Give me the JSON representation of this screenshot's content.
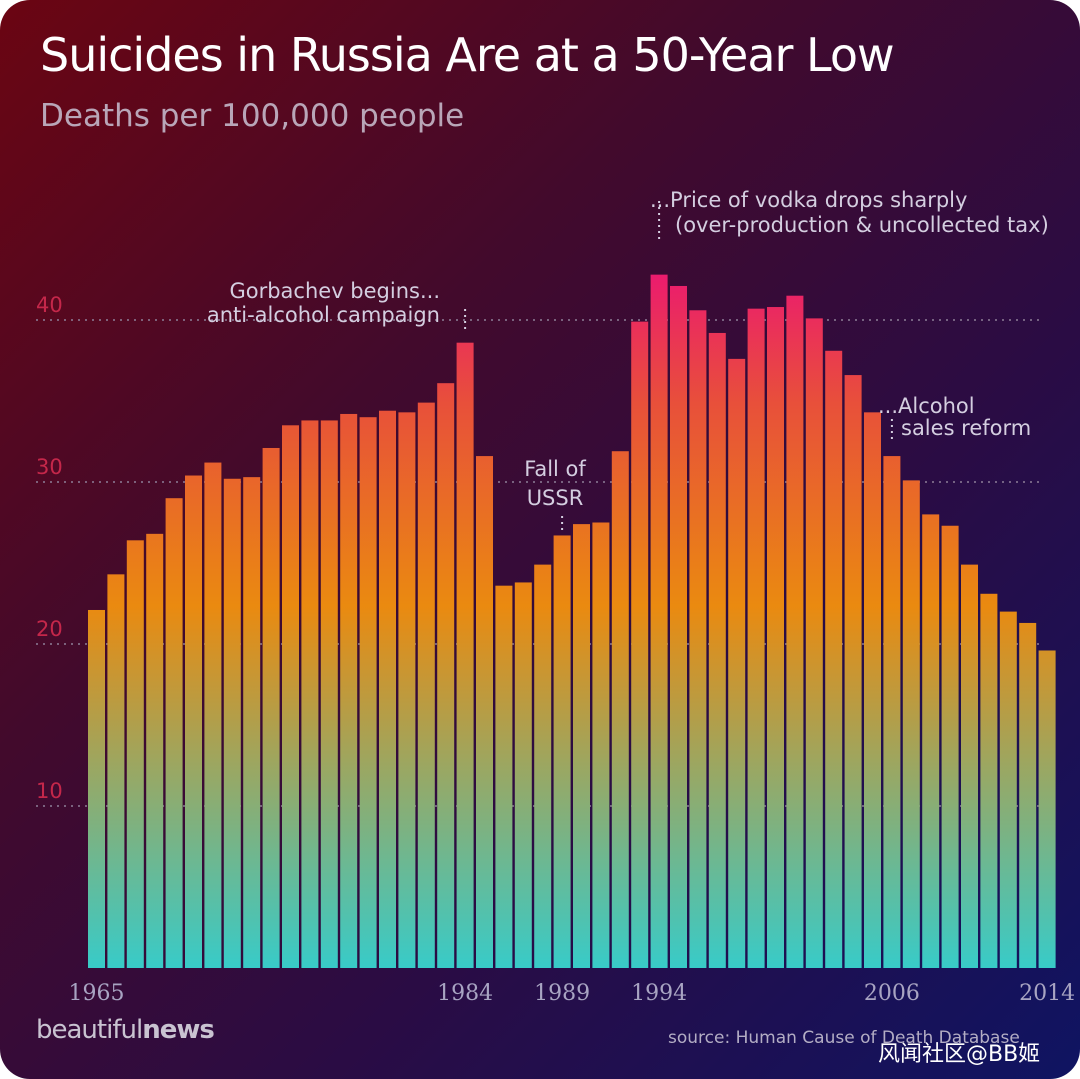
{
  "page": {
    "title": "Suicides in Russia Are at a 50-Year Low",
    "subtitle": "Deaths per 100,000 people",
    "brand": {
      "light": "beautiful",
      "bold": "news"
    },
    "source": "source: Human Cause of Death Database",
    "watermark": "风闻社区@BB姬"
  },
  "colors": {
    "bar_top": "#ec0f7a",
    "bar_mid_upper": "#e8503a",
    "bar_mid": "#ea8a10",
    "bar_bottom": "#38cbc8",
    "gridline": "#8e7f98",
    "ytick": "#c4274a"
  },
  "chart_data": {
    "type": "bar",
    "title": "Suicides in Russia Are at a 50-Year Low",
    "subtitle": "Deaths per 100,000 people",
    "xlabel": "",
    "ylabel": "",
    "x_start": 1965,
    "x_end": 2014,
    "ylim": [
      0,
      45
    ],
    "yticks": [
      10,
      20,
      30,
      40
    ],
    "grid": true,
    "x_tick_labels": [
      "1965",
      "1984",
      "1989",
      "1994",
      "2006",
      "2014"
    ],
    "categories": [
      "1965",
      "1966",
      "1967",
      "1968",
      "1969",
      "1970",
      "1971",
      "1972",
      "1973",
      "1974",
      "1975",
      "1976",
      "1977",
      "1978",
      "1979",
      "1980",
      "1981",
      "1982",
      "1983",
      "1984",
      "1985",
      "1986",
      "1987",
      "1988",
      "1989",
      "1990",
      "1991",
      "1992",
      "1993",
      "1994",
      "1995",
      "1996",
      "1997",
      "1998",
      "1999",
      "2000",
      "2001",
      "2002",
      "2003",
      "2004",
      "2005",
      "2006",
      "2007",
      "2008",
      "2009",
      "2010",
      "2011",
      "2012",
      "2013",
      "2014"
    ],
    "values": [
      22.1,
      24.3,
      26.4,
      26.8,
      29.0,
      30.4,
      31.2,
      30.2,
      30.3,
      32.1,
      33.5,
      33.8,
      33.8,
      34.2,
      34.0,
      34.4,
      34.3,
      34.9,
      36.1,
      38.6,
      31.6,
      23.6,
      23.8,
      24.9,
      26.7,
      27.4,
      27.5,
      31.9,
      39.9,
      42.8,
      42.1,
      40.6,
      39.2,
      37.6,
      40.7,
      40.8,
      41.5,
      40.1,
      38.1,
      36.6,
      34.3,
      31.6,
      30.1,
      28.0,
      27.3,
      24.9,
      23.1,
      22.0,
      21.3,
      19.6
    ],
    "annotations": [
      {
        "year": 1984,
        "lines": [
          "Gorbachev begins...",
          "anti-alcohol campaign"
        ],
        "anchor": "end"
      },
      {
        "year": 1989,
        "lines": [
          "Fall of",
          "USSR"
        ],
        "anchor": "middle"
      },
      {
        "year": 1994,
        "lines": [
          "...Price of vodka drops sharply",
          "(over-production & uncollected tax)"
        ],
        "anchor": "start"
      },
      {
        "year": 2006,
        "lines": [
          "...Alcohol",
          "sales reform"
        ],
        "anchor": "start"
      }
    ]
  }
}
